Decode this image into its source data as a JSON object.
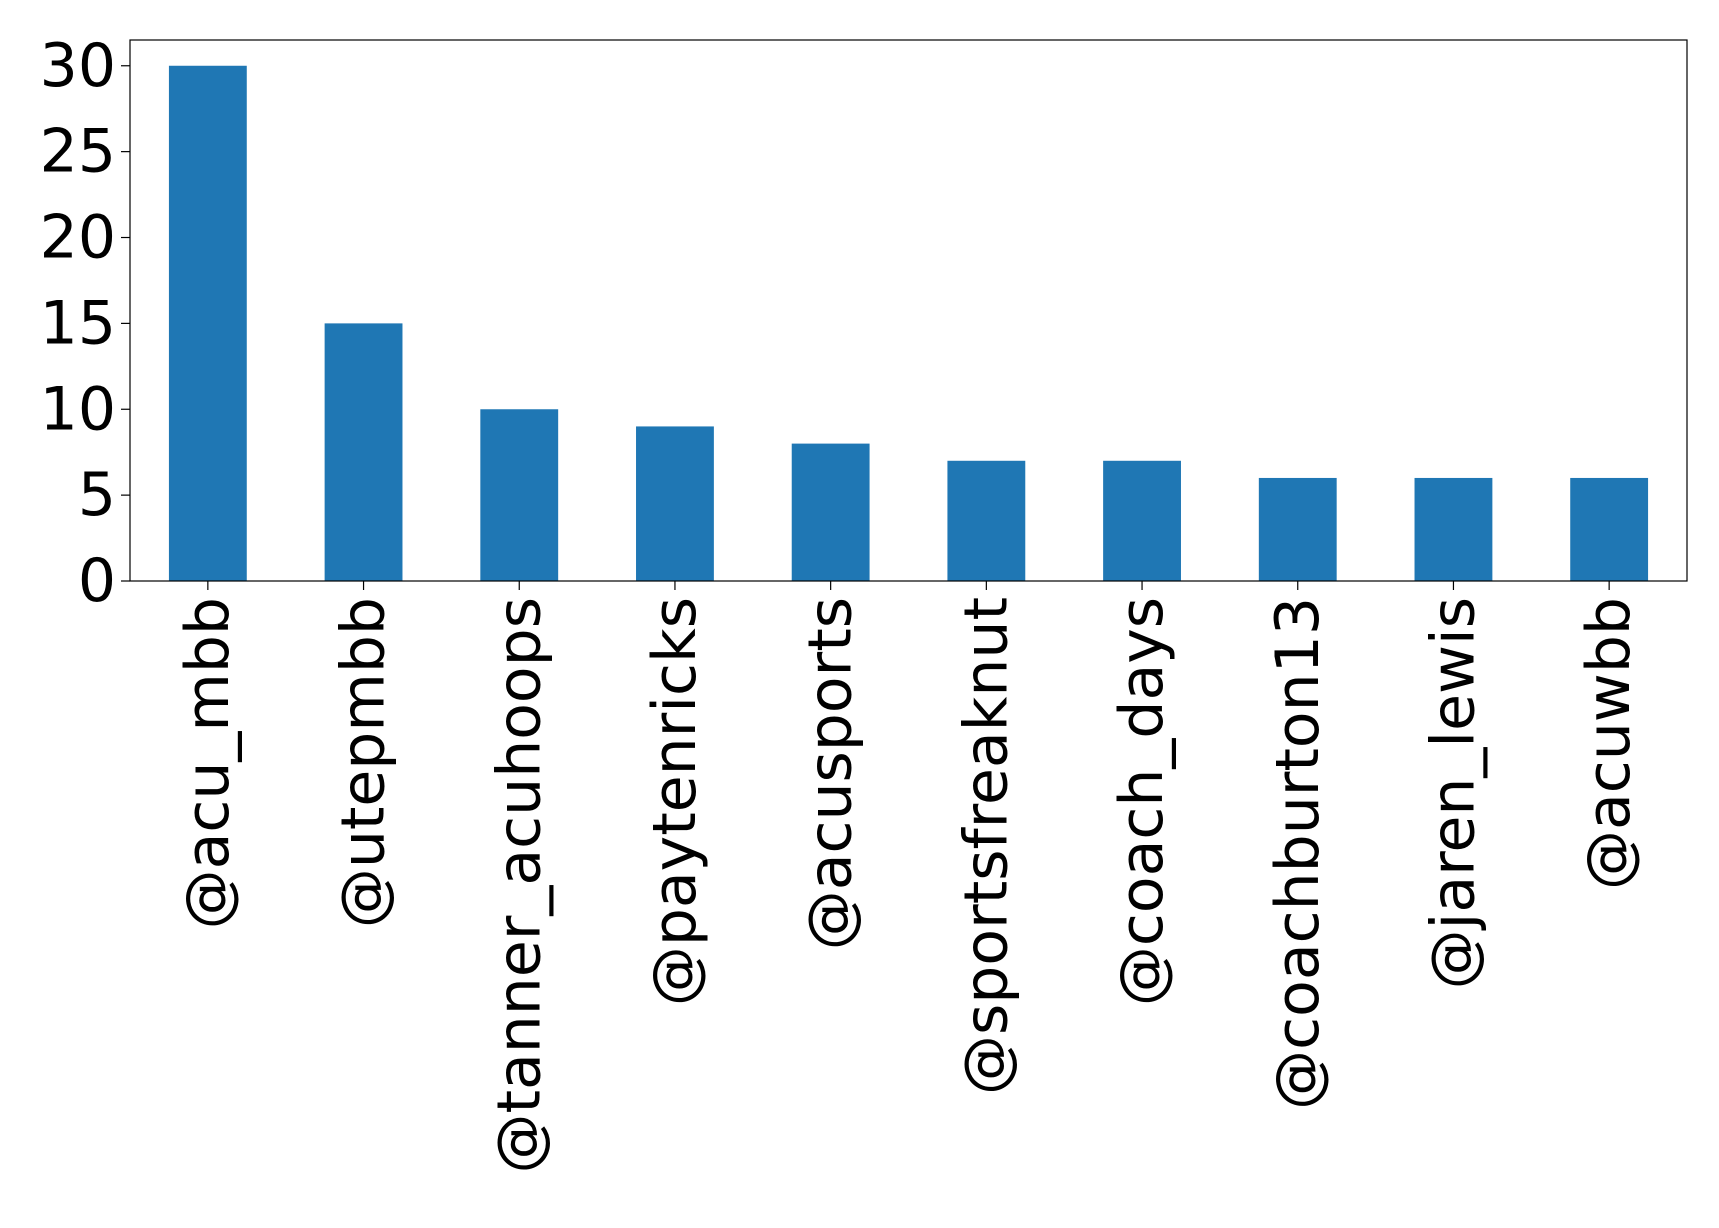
{
  "chart_data": {
    "type": "bar",
    "title": "",
    "xlabel": "",
    "ylabel": "",
    "categories": [
      "@acu_mbb",
      "@utepmbb",
      "@tanner_acuhoops",
      "@paytenricks",
      "@acusports",
      "@sportsfreaknut",
      "@coach_days",
      "@coachburton13",
      "@jaren_lewis",
      "@acuwbb"
    ],
    "values": [
      30,
      15,
      10,
      9,
      8,
      7,
      7,
      6,
      6,
      6
    ],
    "ylim": [
      0,
      31.5
    ],
    "yticks": [
      0,
      5,
      10,
      15,
      20,
      25,
      30
    ],
    "grid": false,
    "legend": "none",
    "bar_color": "#1f77b4"
  }
}
